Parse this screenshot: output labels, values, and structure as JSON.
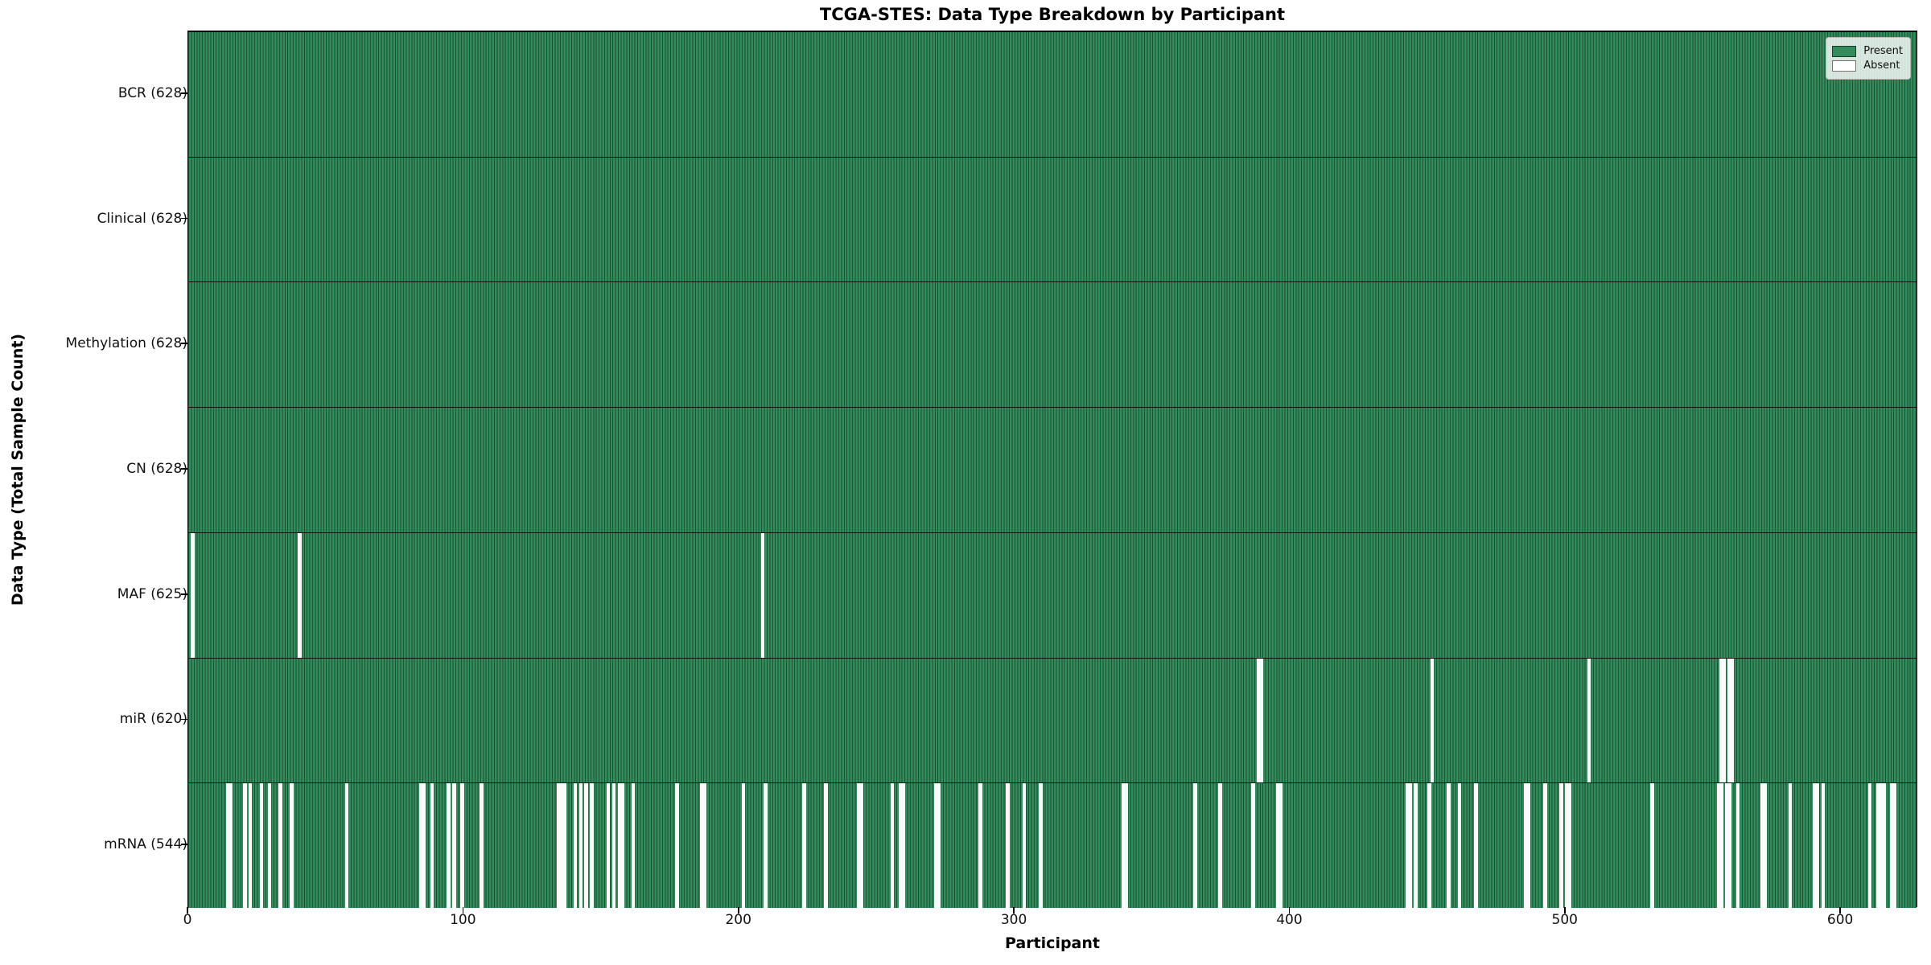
{
  "chart_data": {
    "type": "heatmap",
    "title": "TCGA-STES: Data Type Breakdown by Participant",
    "xlabel": "Participant",
    "ylabel": "Data Type (Total Sample Count)",
    "n_participants": 628,
    "xlim": [
      0,
      628
    ],
    "xticks": [
      0,
      100,
      200,
      300,
      400,
      500,
      600
    ],
    "grid": false,
    "legend_position": "upper right",
    "colors": {
      "present": "#348b5b",
      "present_edge": "#0c2e1c",
      "absent": "#fbfbfb",
      "row_separator": "#000000"
    },
    "legend": [
      {
        "label": "Present",
        "color": "#348b5b"
      },
      {
        "label": "Absent",
        "color": "#ffffff"
      }
    ],
    "rows": [
      {
        "label": "BCR (628)",
        "name": "BCR",
        "total": 628,
        "present_count": 628,
        "absent": []
      },
      {
        "label": "Clinical (628)",
        "name": "Clinical",
        "total": 628,
        "present_count": 628,
        "absent": []
      },
      {
        "label": "Methylation (628)",
        "name": "Methylation",
        "total": 628,
        "present_count": 628,
        "absent": []
      },
      {
        "label": "CN (628)",
        "name": "CN",
        "total": 628,
        "present_count": 628,
        "absent": []
      },
      {
        "label": "MAF (625)",
        "name": "MAF",
        "total": 628,
        "present_count": 625,
        "absent": [
          1,
          40,
          208
        ]
      },
      {
        "label": "miR (620)",
        "name": "miR",
        "total": 628,
        "present_count": 620,
        "absent": [
          388,
          389,
          451,
          508,
          556,
          557,
          559,
          560
        ]
      },
      {
        "label": "mRNA (544)",
        "name": "mRNA",
        "total": 628,
        "present_count": 544,
        "absent": [
          14,
          15,
          20,
          22,
          26,
          29,
          33,
          37,
          57,
          84,
          85,
          88,
          94,
          96,
          99,
          106,
          134,
          135,
          136,
          140,
          142,
          144,
          146,
          152,
          154,
          156,
          157,
          161,
          177,
          186,
          187,
          201,
          209,
          223,
          231,
          243,
          244,
          255,
          258,
          259,
          271,
          272,
          287,
          297,
          303,
          309,
          339,
          340,
          365,
          374,
          386,
          395,
          396,
          442,
          443,
          445,
          450,
          457,
          461,
          467,
          485,
          486,
          492,
          498,
          500,
          501,
          531,
          555,
          556,
          558,
          559,
          562,
          571,
          572,
          581,
          590,
          591,
          593,
          610,
          613,
          614,
          615,
          618,
          619
        ]
      }
    ]
  }
}
